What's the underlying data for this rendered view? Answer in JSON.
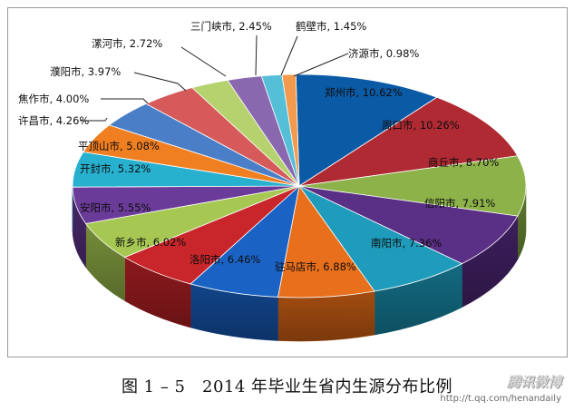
{
  "chart_data": {
    "type": "pie",
    "title": "图 1 – 5　2014 年毕业生省内生源分布比例",
    "slices": [
      {
        "label": "郑州市",
        "value": 10.62,
        "text": "郑州市, 10.62%",
        "color": "#0b5aa5",
        "side": "#073f74"
      },
      {
        "label": "周口市",
        "value": 10.26,
        "text": "周口市, 10.26%",
        "color": "#b02a33",
        "side": "#7a1b22"
      },
      {
        "label": "商丘市",
        "value": 8.7,
        "text": "商丘市, 8.70%",
        "color": "#8db24a",
        "side": "#5f7b2f"
      },
      {
        "label": "信阳市",
        "value": 7.91,
        "text": "信阳市, 7.91%",
        "color": "#5a2f86",
        "side": "#3c1e5c"
      },
      {
        "label": "南阳市",
        "value": 7.36,
        "text": "南阳市, 7.36%",
        "color": "#1f9bbb",
        "side": "#136a81"
      },
      {
        "label": "驻马店市",
        "value": 6.88,
        "text": "驻马店市, 6.88%",
        "color": "#e86f1c",
        "side": "#a34c10"
      },
      {
        "label": "洛阳市",
        "value": 6.46,
        "text": "洛阳市, 6.46%",
        "color": "#1a63c4",
        "side": "#114489"
      },
      {
        "label": "新乡市",
        "value": 6.02,
        "text": "新乡市, 6.02%",
        "color": "#c8262b",
        "side": "#8c191d"
      },
      {
        "label": "安阳市",
        "value": 5.55,
        "text": "安阳市, 5.55%",
        "color": "#a6c853",
        "side": "#758d39"
      },
      {
        "label": "开封市",
        "value": 5.32,
        "text": "开封市, 5.32%",
        "color": "#6b3b99",
        "side": "#48276a"
      },
      {
        "label": "平顶山市",
        "value": 5.08,
        "text": "平顶山市, 5.08%",
        "color": "#28b0cf",
        "side": "#1a7a90"
      },
      {
        "label": "许昌市",
        "value": 4.26,
        "text": "许昌市, 4.26%",
        "color": "#f07f22",
        "side": "#a85816"
      },
      {
        "label": "焦作市",
        "value": 4.0,
        "text": "焦作市, 4.00%",
        "color": "#4a7fc7",
        "side": "#32588c"
      },
      {
        "label": "濮阳市",
        "value": 3.97,
        "text": "濮阳市, 3.97%",
        "color": "#d65a5a",
        "side": "#953e3e"
      },
      {
        "label": "漯河市",
        "value": 2.72,
        "text": "漯河市, 2.72%",
        "color": "#b6d26e",
        "side": "#7f934c"
      },
      {
        "label": "三门峡市",
        "value": 2.45,
        "text": "三门峡市, 2.45%",
        "color": "#8a68b0",
        "side": "#60487b"
      },
      {
        "label": "鹤壁市",
        "value": 1.45,
        "text": "鹤壁市, 1.45%",
        "color": "#55bfd8",
        "side": "#3a8597"
      },
      {
        "label": "济源市",
        "value": 0.98,
        "text": "济源市, 0.98%",
        "color": "#f39a4e",
        "side": "#a96b36"
      }
    ],
    "legend": "none"
  },
  "watermark": {
    "logo": "腾讯微博",
    "url": "http://t.qq.com/henandaily"
  }
}
